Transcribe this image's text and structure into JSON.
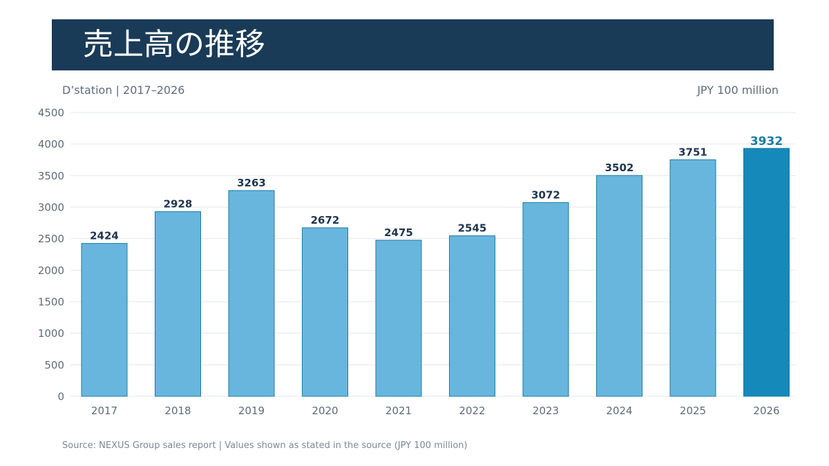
{
  "header": {
    "title": "売上高の推移",
    "subtitle": "D’station | 2017–2026",
    "unit": "JPY 100 million"
  },
  "footer": {
    "source": "Source: NEXUS Group sales report | Values shown as stated in the source (JPY 100 million)"
  },
  "colors": {
    "banner": "#1a3b57",
    "bar": "#68b6dd",
    "bar_highlight": "#1589b9",
    "bar_stroke": "#1a7aa3",
    "value_label": "#1f3550",
    "value_label_highlight": "#1a7aa3",
    "gridline": "#e2e7ec",
    "tick_label": "#5d6b7a"
  },
  "chart_data": {
    "type": "bar",
    "categories": [
      "2017",
      "2018",
      "2019",
      "2020",
      "2021",
      "2022",
      "2023",
      "2024",
      "2025",
      "2026"
    ],
    "values": [
      2424,
      2928,
      3263,
      2672,
      2475,
      2545,
      3072,
      3502,
      3751,
      3932
    ],
    "highlight_index": 9,
    "ylim": [
      0,
      4500
    ],
    "yticks": [
      0,
      500,
      1000,
      1500,
      2000,
      2500,
      3000,
      3500,
      4000,
      4500
    ],
    "grid": true,
    "legend": "none"
  }
}
